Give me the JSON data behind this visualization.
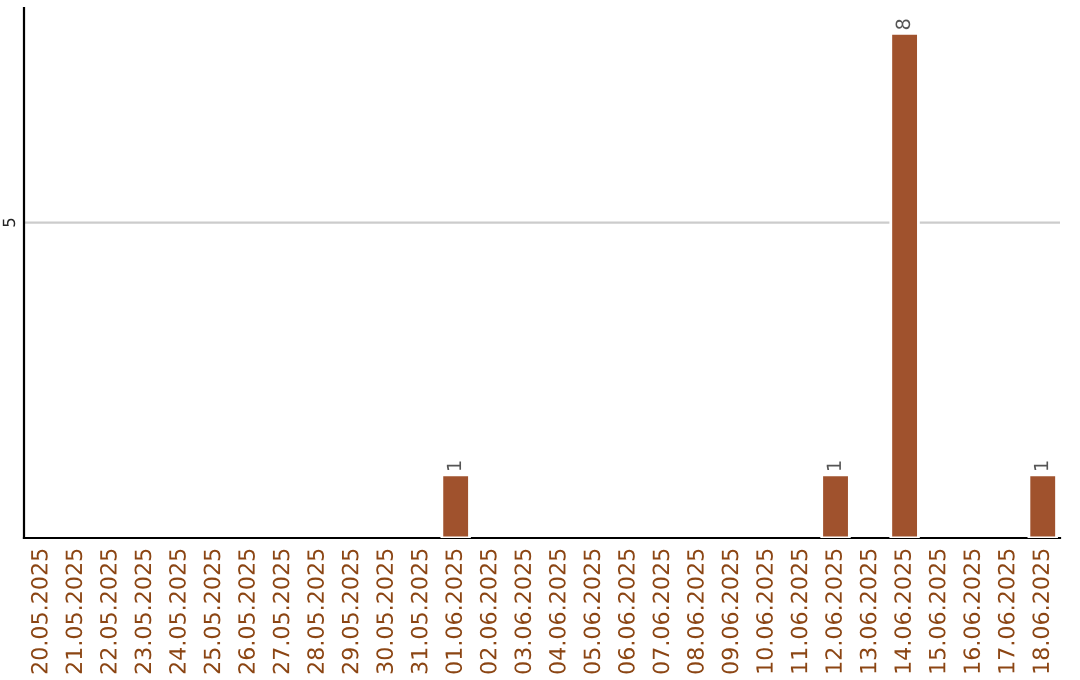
{
  "chart_data": {
    "type": "bar",
    "categories": [
      "20.05.2025",
      "21.05.2025",
      "22.05.2025",
      "23.05.2025",
      "24.05.2025",
      "25.05.2025",
      "26.05.2025",
      "27.05.2025",
      "28.05.2025",
      "29.05.2025",
      "30.05.2025",
      "31.05.2025",
      "01.06.2025",
      "02.06.2025",
      "03.06.2025",
      "04.06.2025",
      "05.06.2025",
      "06.06.2025",
      "07.06.2025",
      "08.06.2025",
      "09.06.2025",
      "10.06.2025",
      "11.06.2025",
      "12.06.2025",
      "13.06.2025",
      "14.06.2025",
      "15.06.2025",
      "16.06.2025",
      "17.06.2025",
      "18.06.2025"
    ],
    "values": [
      null,
      null,
      null,
      null,
      null,
      null,
      null,
      null,
      null,
      null,
      null,
      null,
      1,
      null,
      null,
      null,
      null,
      null,
      null,
      null,
      null,
      null,
      null,
      1,
      null,
      8,
      null,
      null,
      null,
      1
    ],
    "data_labels": true,
    "color": "#a0522d",
    "ylim": [
      0,
      8.4
    ],
    "yticks": [
      {
        "value": 5,
        "label": "5"
      }
    ],
    "grid": "y"
  }
}
